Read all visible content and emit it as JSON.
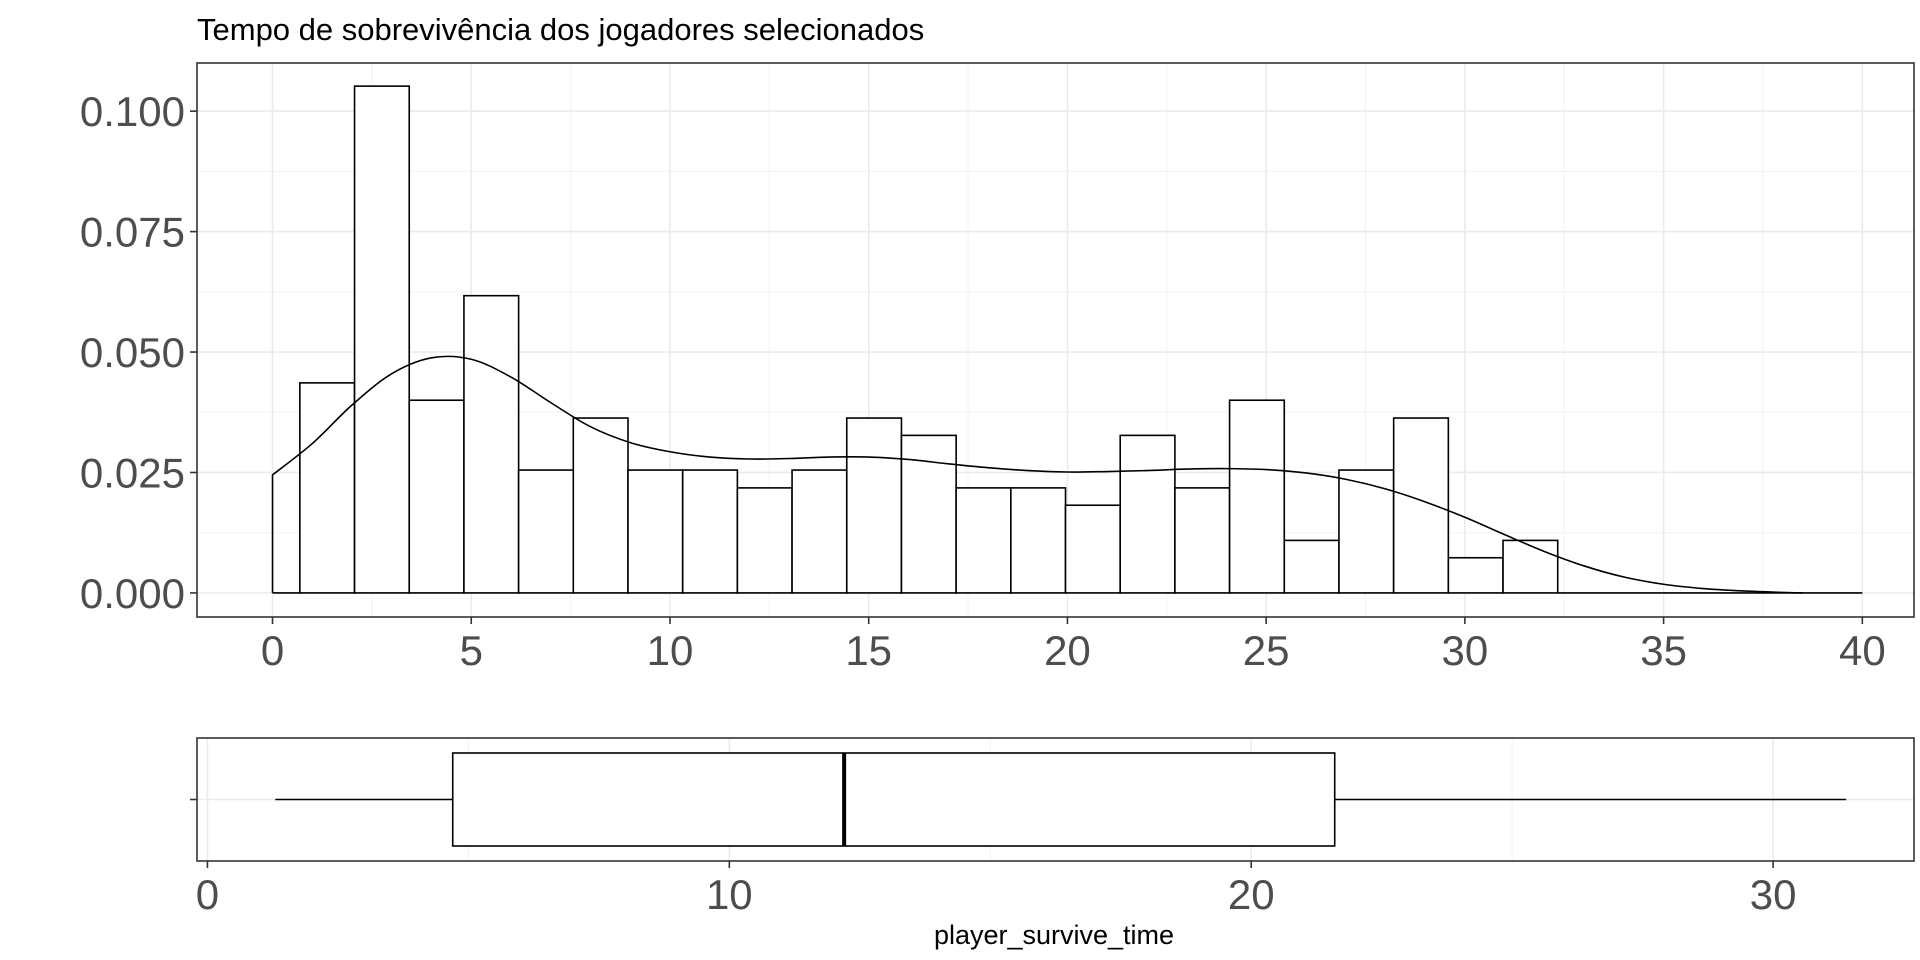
{
  "chart_data": [
    {
      "type": "histogram",
      "title": "Tempo de sobrevivência dos jogadores selecionados",
      "xlabel": "",
      "ylabel": "",
      "xlim": [
        -1.9,
        41.3
      ],
      "ylim": [
        -0.005,
        0.11
      ],
      "x_ticks": [
        0,
        5,
        10,
        15,
        20,
        25,
        30,
        35,
        40
      ],
      "x_tick_labels": [
        "0",
        "5",
        "10",
        "15",
        "20",
        "25",
        "30",
        "35",
        "40"
      ],
      "y_ticks": [
        0.0,
        0.025,
        0.05,
        0.075,
        0.1
      ],
      "y_tick_labels": [
        "0.000",
        "0.025",
        "0.050",
        "0.075",
        "0.100"
      ],
      "grid": true,
      "bin_width": 1.376,
      "bins": [
        {
          "x0": 0.0,
          "x1": 0.688,
          "density": 0.0
        },
        {
          "x0": 0.688,
          "x1": 2.064,
          "density": 0.0436
        },
        {
          "x0": 2.064,
          "x1": 3.44,
          "density": 0.1052
        },
        {
          "x0": 3.44,
          "x1": 4.816,
          "density": 0.04
        },
        {
          "x0": 4.816,
          "x1": 6.192,
          "density": 0.0617
        },
        {
          "x0": 6.192,
          "x1": 7.568,
          "density": 0.0255
        },
        {
          "x0": 7.568,
          "x1": 8.944,
          "density": 0.0363
        },
        {
          "x0": 8.944,
          "x1": 10.32,
          "density": 0.0255
        },
        {
          "x0": 10.32,
          "x1": 11.696,
          "density": 0.0255
        },
        {
          "x0": 11.696,
          "x1": 13.072,
          "density": 0.0218
        },
        {
          "x0": 13.072,
          "x1": 14.448,
          "density": 0.0255
        },
        {
          "x0": 14.448,
          "x1": 15.824,
          "density": 0.0363
        },
        {
          "x0": 15.824,
          "x1": 17.2,
          "density": 0.0327
        },
        {
          "x0": 17.2,
          "x1": 18.576,
          "density": 0.0218
        },
        {
          "x0": 18.576,
          "x1": 19.952,
          "density": 0.0218
        },
        {
          "x0": 19.952,
          "x1": 21.328,
          "density": 0.0182
        },
        {
          "x0": 21.328,
          "x1": 22.704,
          "density": 0.0327
        },
        {
          "x0": 22.704,
          "x1": 24.08,
          "density": 0.0218
        },
        {
          "x0": 24.08,
          "x1": 25.456,
          "density": 0.04
        },
        {
          "x0": 25.456,
          "x1": 26.832,
          "density": 0.0109
        },
        {
          "x0": 26.832,
          "x1": 28.208,
          "density": 0.0255
        },
        {
          "x0": 28.208,
          "x1": 29.584,
          "density": 0.0363
        },
        {
          "x0": 29.584,
          "x1": 30.96,
          "density": 0.0073
        },
        {
          "x0": 30.96,
          "x1": 32.336,
          "density": 0.0109
        }
      ],
      "density_curve": {
        "x": [
          0,
          1,
          2,
          3,
          4,
          5,
          6,
          7,
          8,
          9,
          10,
          11,
          12,
          13,
          14,
          15,
          16,
          17,
          18,
          19,
          20,
          21,
          22,
          23,
          24,
          25,
          26,
          27,
          28,
          29,
          30,
          31,
          32,
          33,
          34,
          35,
          36,
          37,
          38,
          38.5
        ],
        "y": [
          0.0245,
          0.031,
          0.039,
          0.0455,
          0.0488,
          0.0485,
          0.0448,
          0.0395,
          0.0345,
          0.0312,
          0.0293,
          0.0282,
          0.0278,
          0.0279,
          0.0282,
          0.0282,
          0.0277,
          0.0268,
          0.026,
          0.0254,
          0.0251,
          0.0252,
          0.0254,
          0.0257,
          0.0258,
          0.0256,
          0.0249,
          0.0236,
          0.0216,
          0.0189,
          0.0157,
          0.0121,
          0.0086,
          0.0056,
          0.0033,
          0.0018,
          0.0009,
          0.0004,
          0.0001,
          0.0
        ]
      }
    },
    {
      "type": "boxplot",
      "xlabel": "player_survive_time",
      "xlim": [
        -0.2,
        32.7
      ],
      "x_ticks": [
        0,
        10,
        20,
        30
      ],
      "x_tick_labels": [
        "0",
        "10",
        "20",
        "30"
      ],
      "grid": true,
      "whisker_low": 1.3,
      "q1": 4.7,
      "median": 12.2,
      "q3": 21.6,
      "whisker_high": 31.4
    }
  ]
}
